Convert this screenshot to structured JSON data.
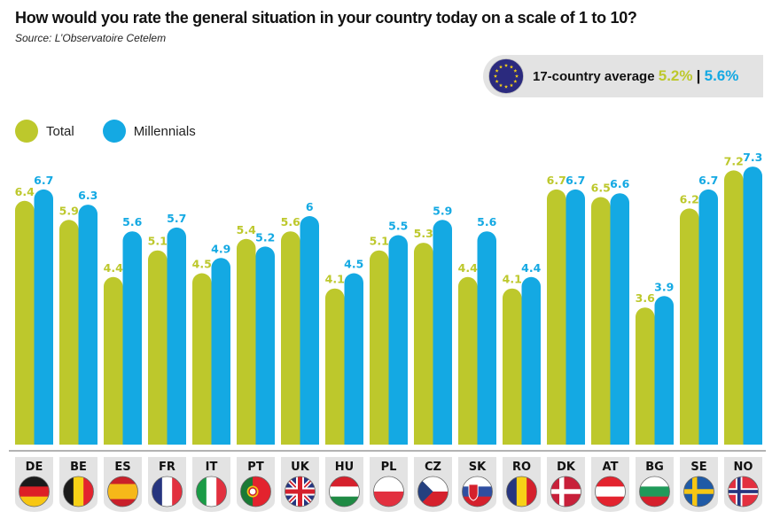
{
  "header": {
    "title": "How would you rate the general situation in your country today on a scale of 1 to 10?",
    "source": "Source: L’Observatoire Cetelem"
  },
  "average": {
    "label": "17-country average",
    "total": "5.2%",
    "separator": "|",
    "millennials": "5.6%",
    "icon": "eu-flag-icon"
  },
  "legend": [
    {
      "label": "Total",
      "color": "#bdc82c"
    },
    {
      "label": "Millennials",
      "color": "#14a9e3"
    }
  ],
  "colors": {
    "total": "#bdc82c",
    "millennials": "#14a9e3",
    "baseline": "#9a9a9a",
    "label_tab": "#e3e3e3"
  },
  "chart_data": {
    "type": "bar",
    "title": "How would you rate the general situation in your country today on a scale of 1 to 10?",
    "subtitle": "Source: L’Observatoire Cetelem",
    "xlabel": "",
    "ylabel": "",
    "ylim": [
      0,
      10
    ],
    "grid": false,
    "legend_position": "top-left",
    "categories": [
      "DE",
      "BE",
      "ES",
      "FR",
      "IT",
      "PT",
      "UK",
      "HU",
      "PL",
      "CZ",
      "SK",
      "RO",
      "DK",
      "AT",
      "BG",
      "SE",
      "NO"
    ],
    "series": [
      {
        "name": "Total",
        "color": "#bdc82c",
        "values": [
          6.4,
          5.9,
          4.4,
          5.1,
          4.5,
          5.4,
          5.6,
          4.1,
          5.1,
          5.3,
          4.4,
          4.1,
          6.7,
          6.5,
          3.6,
          6.2,
          7.2
        ]
      },
      {
        "name": "Millennials",
        "color": "#14a9e3",
        "values": [
          6.7,
          6.3,
          5.6,
          5.7,
          4.9,
          5.2,
          6,
          4.5,
          5.5,
          5.9,
          5.6,
          4.4,
          6.7,
          6.6,
          3.9,
          6.7,
          7.3
        ]
      }
    ],
    "value_labels": {
      "Total": [
        "6.4",
        "5.9",
        "4.4",
        "5.1",
        "4.5",
        "5.4",
        "5.6",
        "4.1",
        "5.1",
        "5.3",
        "4.4",
        "4.1",
        "6.7",
        "6.5",
        "3.6",
        "6.2",
        "7.2"
      ],
      "Millennials": [
        "6.7",
        "6.3",
        "5.6",
        "5.7",
        "4.9",
        "5.2",
        "6",
        "4.5",
        "5.5",
        "5.9",
        "5.6",
        "4.4",
        "6.7",
        "6.6",
        "3.9",
        "6.7",
        "7.3"
      ]
    },
    "flags": {
      "DE": "germany-flag-icon",
      "BE": "belgium-flag-icon",
      "ES": "spain-flag-icon",
      "FR": "france-flag-icon",
      "IT": "italy-flag-icon",
      "PT": "portugal-flag-icon",
      "UK": "uk-flag-icon",
      "HU": "hungary-flag-icon",
      "PL": "poland-flag-icon",
      "CZ": "czech-flag-icon",
      "SK": "slovakia-flag-icon",
      "RO": "romania-flag-icon",
      "DK": "denmark-flag-icon",
      "AT": "austria-flag-icon",
      "BG": "bulgaria-flag-icon",
      "SE": "sweden-flag-icon",
      "NO": "norway-flag-icon"
    }
  }
}
